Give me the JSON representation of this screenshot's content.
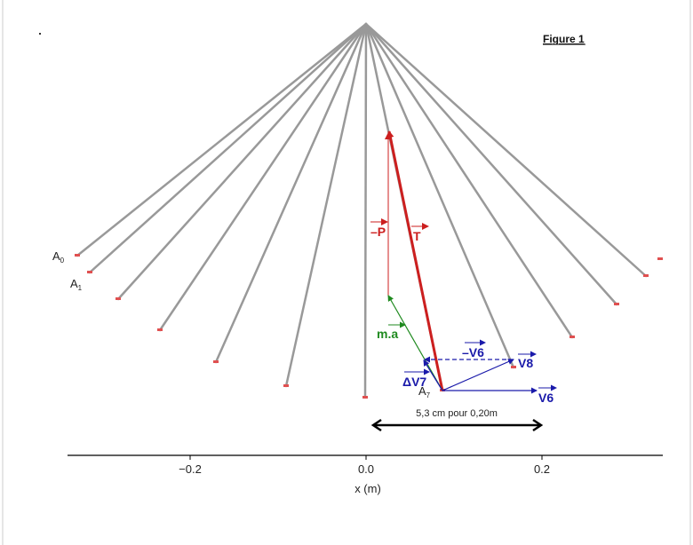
{
  "figure_title": "Figure 1",
  "points": {
    "a0": "A",
    "a0_sub": "0",
    "a1": "A",
    "a1_sub": "1",
    "a7": "A",
    "a7_sub": "7"
  },
  "vectors": {
    "minus_p": "–P",
    "t": "T",
    "ma": "m.a",
    "minus_v6": "–V6",
    "v8": "V8",
    "delta_v7": "ΔV7",
    "v6": "V6"
  },
  "scale_note": "5,3 cm pour 0,20m",
  "axis": {
    "xlabel": "x (m)",
    "ticks": [
      "−0.2",
      "0.0",
      "0.2"
    ]
  },
  "colors": {
    "string": "#999999",
    "tension": "#cc1f1f",
    "acceleration": "#1f8a1f",
    "velocity": "#1a1aaa",
    "mass_marker": "#e05050"
  }
}
